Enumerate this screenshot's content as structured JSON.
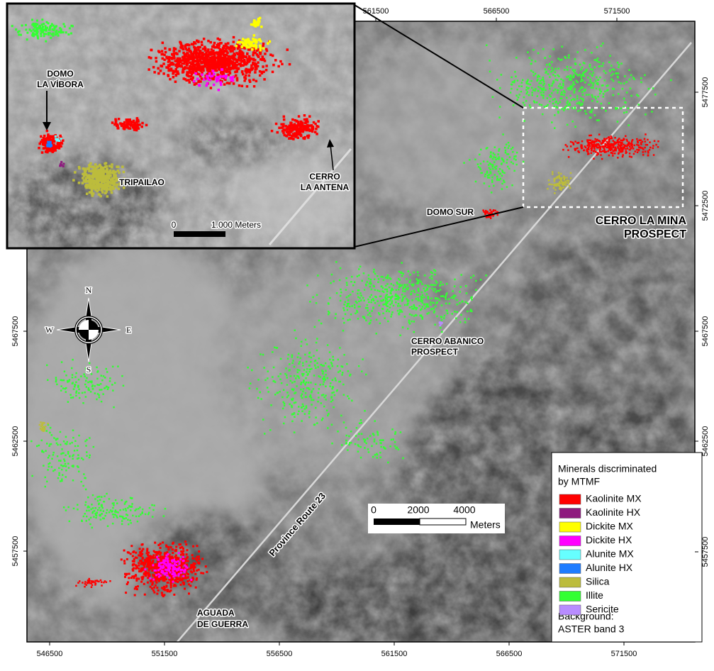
{
  "inset": {
    "labels": {
      "domo": [
        "DOMO",
        "LA VÍBORA"
      ],
      "tripailao": "TRIPAILAO",
      "antena": [
        "CERRO",
        "LA ANTENA"
      ]
    },
    "scale_bar": {
      "start": "0",
      "end": "1.000 Meters"
    }
  },
  "map": {
    "labels": {
      "domo_sur": "DOMO SUR",
      "la_mina": [
        "CERRO LA MINA",
        "PROSPECT"
      ],
      "abanico": [
        "CERRO ABANICO",
        "PROSPECT"
      ],
      "aguada": [
        "AGUADA",
        "DE GUERRA"
      ],
      "road": "Province Route 23"
    },
    "compass": {
      "n": "N",
      "s": "S",
      "e": "E",
      "w": "W"
    },
    "bottom_ticks": [
      546500,
      551500,
      556500,
      561500,
      566500,
      571500
    ],
    "top_ticks": [
      561500,
      566500,
      571500
    ],
    "left_ticks": [
      5467500,
      5462500,
      5457500
    ],
    "right_ticks": [
      5477500,
      5472500,
      5467500,
      5462500,
      5457500
    ],
    "scale_bar": {
      "labels": [
        "0",
        "2000",
        "4000"
      ],
      "unit": "Meters"
    }
  },
  "legend": {
    "title": [
      "Minerals discriminated",
      "by MTMF"
    ],
    "items": [
      {
        "name": "Kaolinite MX",
        "color": "#ff0000"
      },
      {
        "name": "Kaolinite HX",
        "color": "#8e1a7e"
      },
      {
        "name": "Dickite MX",
        "color": "#ffff00"
      },
      {
        "name": "Dickite HX",
        "color": "#ff00ff"
      },
      {
        "name": "Alunite MX",
        "color": "#66ffff"
      },
      {
        "name": "Alunite HX",
        "color": "#1e7cff"
      },
      {
        "name": "Silica",
        "color": "#bcbc3c"
      },
      {
        "name": "Illite",
        "color": "#33ff33"
      },
      {
        "name": "Sericite",
        "color": "#b88cff"
      }
    ],
    "note": [
      "Background:",
      "ASTER band 3"
    ]
  }
}
